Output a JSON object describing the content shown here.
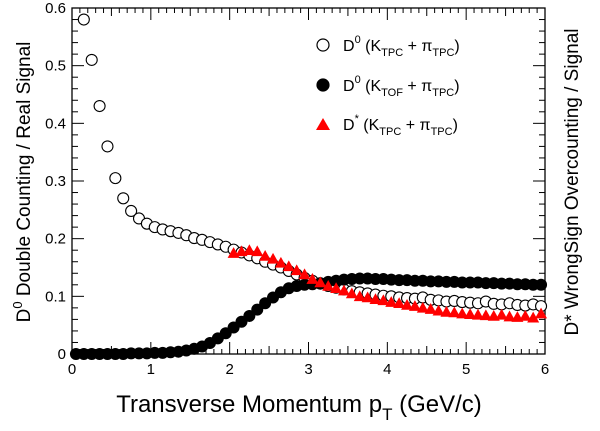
{
  "chart_data": {
    "type": "scatter",
    "xlabel": {
      "main": "Transverse Momentum p",
      "sub": "T",
      "tail": " (GeV/c)"
    },
    "ylabel_left": {
      "sup": "0",
      "pre": "D",
      "text": " Double Counting / Real Signal"
    },
    "ylabel_right": {
      "text": "D* WrongSign Overcounting / Signal",
      "color": "#ff0000"
    },
    "xlim": [
      0,
      6
    ],
    "ylim": [
      0,
      0.6
    ],
    "x_ticks": [
      "0",
      "1",
      "2",
      "3",
      "4",
      "5",
      "6"
    ],
    "y_ticks": [
      "0",
      "0.1",
      "0.2",
      "0.3",
      "0.4",
      "0.5",
      "0.6"
    ],
    "grid": false,
    "legend_position": "top-right",
    "series": [
      {
        "name": "D0 (KTPC + πTPC)",
        "legend": {
          "base": "D",
          "sup": "0",
          "open": " (K",
          "ksub": "TPC",
          "mid": " + π",
          "psub": "TPC",
          "close": ")"
        },
        "marker": "open-circle",
        "color": "#000000",
        "x": [
          0.15,
          0.25,
          0.35,
          0.45,
          0.55,
          0.65,
          0.75,
          0.85,
          0.95,
          1.05,
          1.15,
          1.25,
          1.35,
          1.45,
          1.55,
          1.65,
          1.75,
          1.85,
          1.95,
          2.05,
          2.15,
          2.25,
          2.35,
          2.45,
          2.55,
          2.65,
          2.75,
          2.85,
          2.95,
          3.05,
          3.15,
          3.25,
          3.35,
          3.45,
          3.55,
          3.65,
          3.75,
          3.85,
          3.95,
          4.05,
          4.15,
          4.25,
          4.35,
          4.45,
          4.55,
          4.65,
          4.75,
          4.85,
          4.95,
          5.05,
          5.15,
          5.25,
          5.35,
          5.45,
          5.55,
          5.65,
          5.75,
          5.85,
          5.95
        ],
        "y": [
          0.58,
          0.51,
          0.43,
          0.36,
          0.305,
          0.27,
          0.248,
          0.235,
          0.226,
          0.22,
          0.216,
          0.213,
          0.21,
          0.206,
          0.201,
          0.198,
          0.194,
          0.19,
          0.186,
          0.181,
          0.176,
          0.171,
          0.166,
          0.16,
          0.155,
          0.15,
          0.144,
          0.138,
          0.132,
          0.127,
          0.122,
          0.118,
          0.115,
          0.112,
          0.109,
          0.107,
          0.105,
          0.103,
          0.101,
          0.1,
          0.098,
          0.097,
          0.096,
          0.098,
          0.094,
          0.093,
          0.091,
          0.092,
          0.09,
          0.089,
          0.088,
          0.091,
          0.087,
          0.086,
          0.088,
          0.085,
          0.084,
          0.086,
          0.083
        ]
      },
      {
        "name": "D0 (KTOF + πTPC)",
        "legend": {
          "base": "D",
          "sup": "0",
          "open": " (K",
          "ksub": "TOF",
          "mid": " + π",
          "psub": "TPC",
          "close": ")"
        },
        "marker": "filled-circle",
        "color": "#000000",
        "x": [
          0.05,
          0.15,
          0.25,
          0.35,
          0.45,
          0.55,
          0.65,
          0.75,
          0.85,
          0.95,
          1.05,
          1.15,
          1.25,
          1.35,
          1.45,
          1.55,
          1.65,
          1.75,
          1.85,
          1.95,
          2.05,
          2.15,
          2.25,
          2.35,
          2.45,
          2.55,
          2.65,
          2.75,
          2.85,
          2.95,
          3.05,
          3.15,
          3.25,
          3.35,
          3.45,
          3.55,
          3.65,
          3.75,
          3.85,
          3.95,
          4.05,
          4.15,
          4.25,
          4.35,
          4.45,
          4.55,
          4.65,
          4.75,
          4.85,
          4.95,
          5.05,
          5.15,
          5.25,
          5.35,
          5.45,
          5.55,
          5.65,
          5.75,
          5.85,
          5.95
        ],
        "y": [
          0.0,
          0.0,
          0.0,
          0.0,
          0.0,
          0.0,
          0.0,
          0.001,
          0.001,
          0.001,
          0.002,
          0.002,
          0.003,
          0.004,
          0.006,
          0.009,
          0.013,
          0.019,
          0.027,
          0.036,
          0.046,
          0.056,
          0.066,
          0.077,
          0.088,
          0.098,
          0.107,
          0.114,
          0.118,
          0.12,
          0.121,
          0.123,
          0.125,
          0.127,
          0.129,
          0.13,
          0.131,
          0.131,
          0.13,
          0.13,
          0.129,
          0.128,
          0.128,
          0.127,
          0.127,
          0.126,
          0.126,
          0.125,
          0.125,
          0.124,
          0.124,
          0.124,
          0.123,
          0.123,
          0.122,
          0.122,
          0.121,
          0.121,
          0.12,
          0.12
        ]
      },
      {
        "name": "D* (KTPC + πTPC)",
        "legend": {
          "base": "D",
          "sup": "*",
          "open": " (K",
          "ksub": "TPC",
          "mid": " + π",
          "psub": "TPC",
          "close": ")"
        },
        "marker": "filled-triangle",
        "color": "#ff0000",
        "x": [
          2.05,
          2.15,
          2.25,
          2.35,
          2.45,
          2.55,
          2.65,
          2.75,
          2.85,
          2.95,
          3.05,
          3.15,
          3.25,
          3.35,
          3.45,
          3.55,
          3.65,
          3.75,
          3.85,
          3.95,
          4.05,
          4.15,
          4.25,
          4.35,
          4.45,
          4.55,
          4.65,
          4.75,
          4.85,
          4.95,
          5.05,
          5.15,
          5.25,
          5.35,
          5.45,
          5.55,
          5.65,
          5.75,
          5.85,
          5.95
        ],
        "y": [
          0.175,
          0.178,
          0.18,
          0.178,
          0.17,
          0.165,
          0.158,
          0.152,
          0.145,
          0.138,
          0.13,
          0.124,
          0.118,
          0.114,
          0.11,
          0.105,
          0.1,
          0.098,
          0.095,
          0.093,
          0.09,
          0.088,
          0.085,
          0.083,
          0.08,
          0.078,
          0.075,
          0.073,
          0.072,
          0.07,
          0.069,
          0.068,
          0.067,
          0.066,
          0.068,
          0.065,
          0.064,
          0.066,
          0.063,
          0.07
        ]
      }
    ]
  }
}
